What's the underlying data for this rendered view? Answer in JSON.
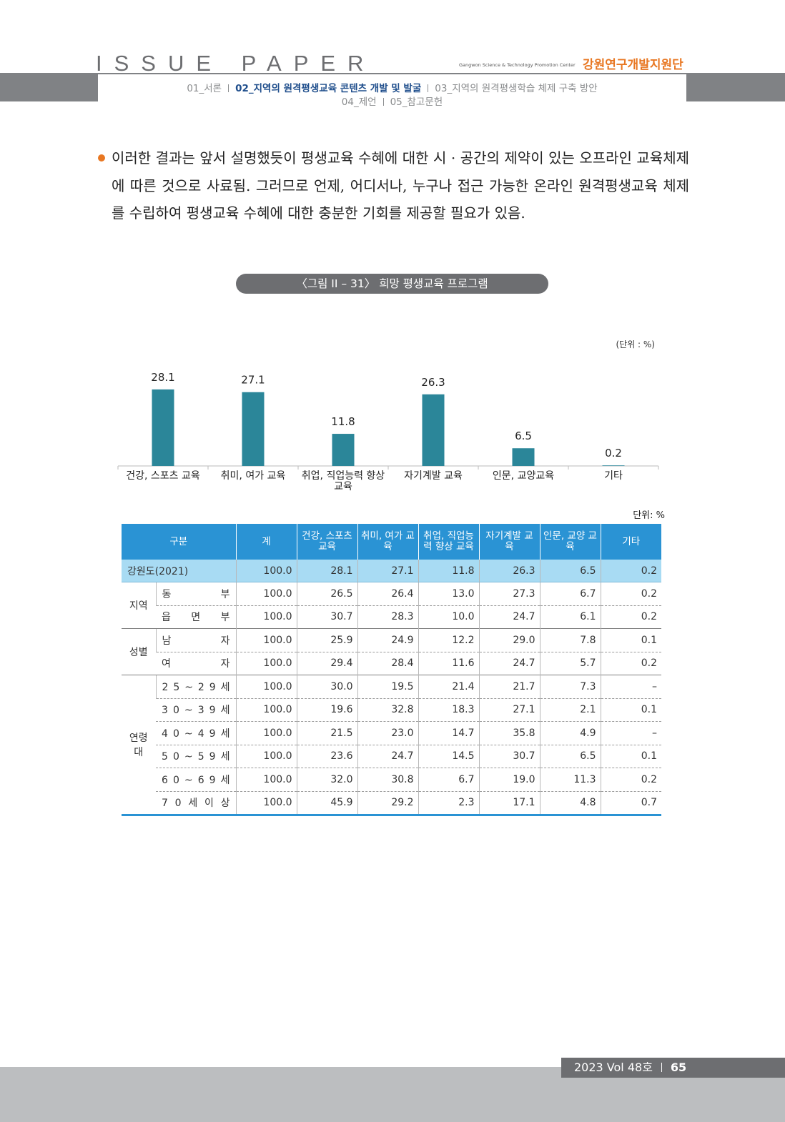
{
  "header": {
    "title": "ISSUE PAPER",
    "org_en": "Gangwon Science & Technology Promotion Center",
    "org": "강원연구개발지원단",
    "nav_line1": [
      "01_서론",
      "02_지역의 원격평생교육 콘텐츠 개발 및 발굴",
      "03_지역의 원격평생학습 체제 구축 방안"
    ],
    "nav_line2": [
      "04_제언",
      "05_참고문헌"
    ]
  },
  "body": {
    "paragraph": "이러한 결과는 앞서 설명했듯이 평생교육 수혜에 대한 시 · 공간의 제약이 있는 오프라인 교육체제에 따른 것으로 사료됨. 그러므로 언제, 어디서나, 누구나 접근 가능한 온라인 원격평생교육 체제를 수립하여 평생교육 수혜에 대한 충분한 기회를 제공할 필요가 있음."
  },
  "figure": {
    "caption": "〈그림 II – 31〉 희망 평생교육 프로그램"
  },
  "chart_data": {
    "type": "bar",
    "unit": "(단위 : %)",
    "categories": [
      "건강, 스포츠 교육",
      "취미, 여가 교육",
      "취업, 직업능력 향상 교육",
      "자기계발 교육",
      "인문, 교양교육",
      "기타"
    ],
    "values": [
      28.1,
      27.1,
      11.8,
      26.3,
      6.5,
      0.2
    ],
    "color": "#2b8699"
  },
  "table": {
    "unit": "단위: %",
    "columns": [
      "구분",
      "계",
      "건강, 스포츠 교육",
      "취미, 여가 교육",
      "취업, 직업능력 향상 교육",
      "자기계발 교육",
      "인문, 교양 교육",
      "기타"
    ],
    "total_row": {
      "label": "강원도(2021)",
      "values": [
        "100.0",
        "28.1",
        "27.1",
        "11.8",
        "26.3",
        "6.5",
        "0.2"
      ]
    },
    "groups": [
      {
        "name": "지역",
        "rows": [
          {
            "label": "동 부",
            "values": [
              "100.0",
              "26.5",
              "26.4",
              "13.0",
              "27.3",
              "6.7",
              "0.2"
            ]
          },
          {
            "label": "읍 면 부",
            "values": [
              "100.0",
              "30.7",
              "28.3",
              "10.0",
              "24.7",
              "6.1",
              "0.2"
            ]
          }
        ]
      },
      {
        "name": "성별",
        "rows": [
          {
            "label": "남 자",
            "values": [
              "100.0",
              "25.9",
              "24.9",
              "12.2",
              "29.0",
              "7.8",
              "0.1"
            ]
          },
          {
            "label": "여 자",
            "values": [
              "100.0",
              "29.4",
              "28.4",
              "11.6",
              "24.7",
              "5.7",
              "0.2"
            ]
          }
        ]
      },
      {
        "name": "연령대",
        "rows": [
          {
            "label": "2 5 ~ 2 9 세",
            "values": [
              "100.0",
              "30.0",
              "19.5",
              "21.4",
              "21.7",
              "7.3",
              "–"
            ]
          },
          {
            "label": "3 0 ~ 3 9 세",
            "values": [
              "100.0",
              "19.6",
              "32.8",
              "18.3",
              "27.1",
              "2.1",
              "0.1"
            ]
          },
          {
            "label": "4 0 ~ 4 9 세",
            "values": [
              "100.0",
              "21.5",
              "23.0",
              "14.7",
              "35.8",
              "4.9",
              "–"
            ]
          },
          {
            "label": "5 0 ~ 5 9 세",
            "values": [
              "100.0",
              "23.6",
              "24.7",
              "14.5",
              "30.7",
              "6.5",
              "0.1"
            ]
          },
          {
            "label": "6 0 ~ 6 9 세",
            "values": [
              "100.0",
              "32.0",
              "30.8",
              "6.7",
              "19.0",
              "11.3",
              "0.2"
            ]
          },
          {
            "label": "7 0 세 이 상",
            "values": [
              "100.0",
              "45.9",
              "29.2",
              "2.3",
              "17.1",
              "4.8",
              "0.7"
            ]
          }
        ]
      }
    ]
  },
  "footer": {
    "issue": "2023 Vol 48호",
    "page": "65"
  }
}
